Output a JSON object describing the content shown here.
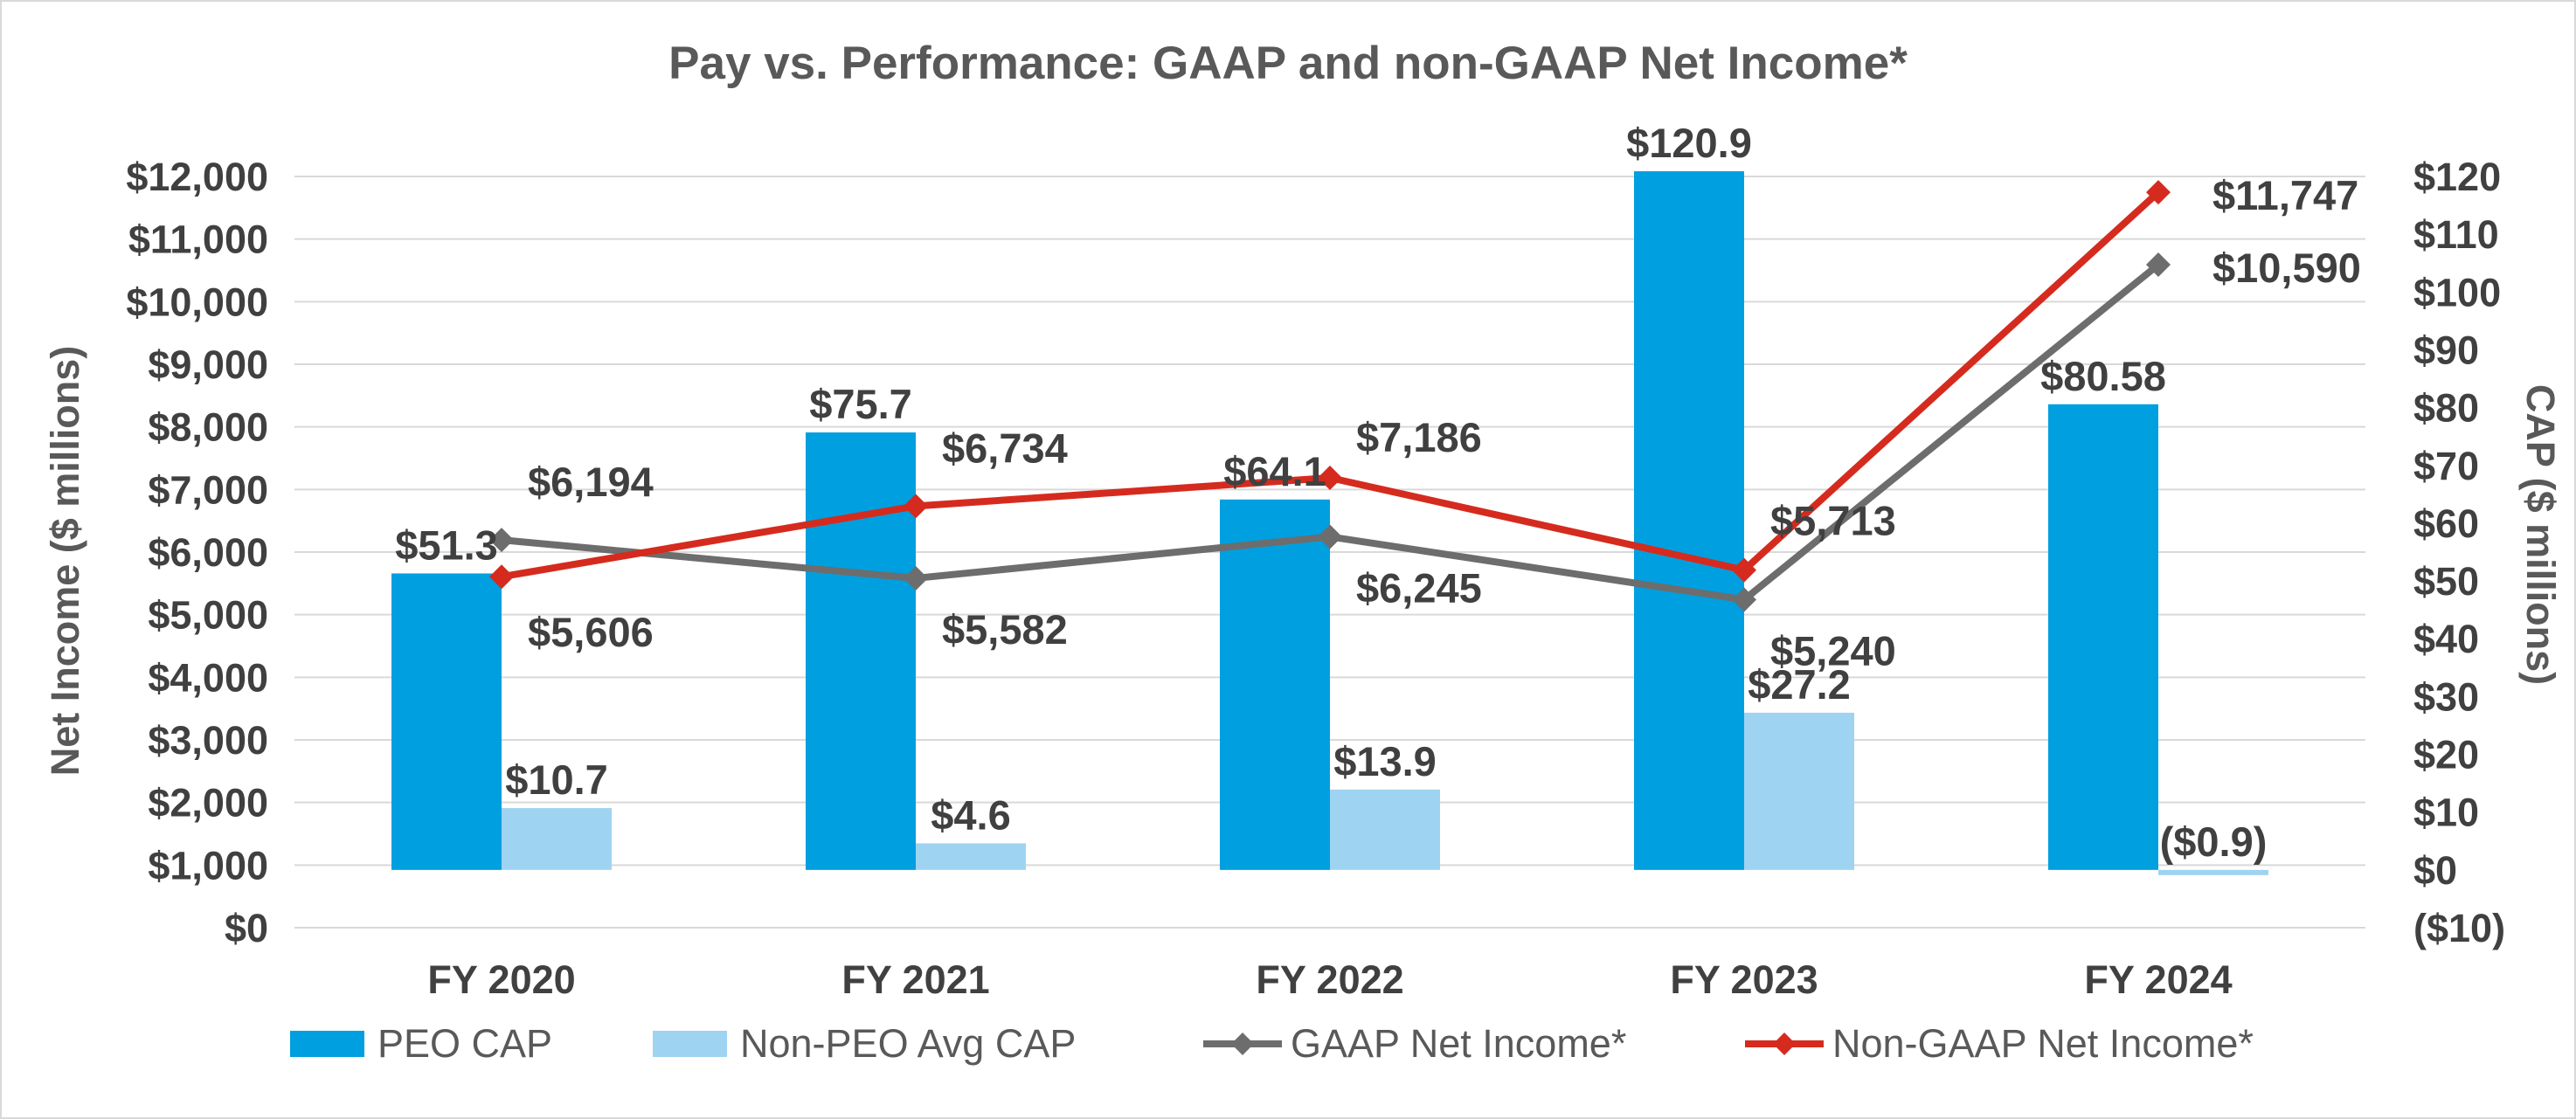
{
  "chart_data": {
    "type": "bar+line",
    "title": "Pay vs. Performance: GAAP and non-GAAP Net Income*",
    "categories": [
      "FY 2020",
      "FY 2021",
      "FY 2022",
      "FY 2023",
      "FY 2024"
    ],
    "ylabel_left": "Net Income ($ millions)",
    "ylabel_right": "CAP ($ millions)",
    "ylim_left": [
      0,
      12000
    ],
    "ylim_right": [
      -10,
      120
    ],
    "left_ticks": [
      "$0",
      "$1,000",
      "$2,000",
      "$3,000",
      "$4,000",
      "$5,000",
      "$6,000",
      "$7,000",
      "$8,000",
      "$9,000",
      "$10,000",
      "$11,000",
      "$12,000"
    ],
    "right_ticks": [
      "($10)",
      "$0",
      "$10",
      "$20",
      "$30",
      "$40",
      "$50",
      "$60",
      "$70",
      "$80",
      "$90",
      "$100",
      "$110",
      "$120"
    ],
    "series": [
      {
        "name": "PEO CAP",
        "kind": "bar",
        "axis": "right",
        "color": "#009fdf",
        "values": [
          51.3,
          75.7,
          64.1,
          120.9,
          80.58
        ],
        "labels": [
          "$51.3",
          "$75.7",
          "$64.1",
          "$120.9",
          "$80.58"
        ]
      },
      {
        "name": "Non-PEO Avg CAP",
        "kind": "bar",
        "axis": "right",
        "color": "#9fd3f2",
        "values": [
          10.7,
          4.6,
          13.9,
          27.2,
          -0.9
        ],
        "labels": [
          "$10.7",
          "$4.6",
          "$13.9",
          "$27.2",
          "($0.9)"
        ]
      },
      {
        "name": "GAAP Net Income*",
        "kind": "line",
        "axis": "left",
        "color": "#6d6d6d",
        "values": [
          6194,
          5582,
          6245,
          5240,
          10590
        ],
        "labels": [
          "$6,194",
          "$5,582",
          "$6,245",
          "$5,240",
          "$10,590"
        ]
      },
      {
        "name": "Non-GAAP Net Income*",
        "kind": "line",
        "axis": "left",
        "color": "#d52b1e",
        "values": [
          5606,
          6734,
          7186,
          5713,
          11747
        ],
        "labels": [
          "$5,606",
          "$6,734",
          "$7,186",
          "$5,713",
          "$11,747"
        ]
      }
    ],
    "legend": [
      "PEO CAP",
      "Non-PEO Avg CAP",
      "GAAP Net Income*",
      "Non-GAAP Net Income*"
    ],
    "legend_position": "bottom",
    "grid": true
  }
}
